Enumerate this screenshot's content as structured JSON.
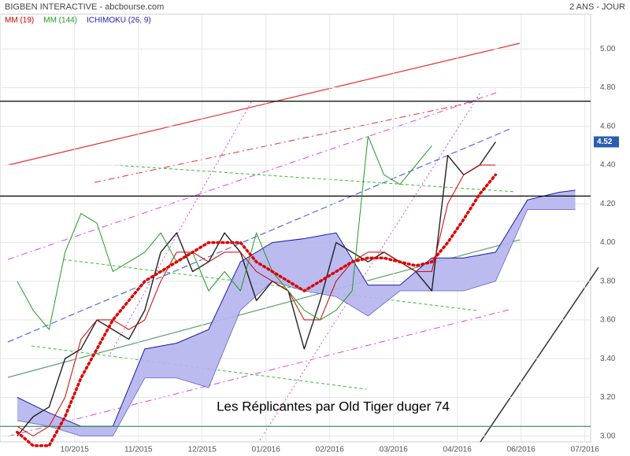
{
  "chart_data": {
    "type": "line",
    "title": "BIGBEN INTERACTIVE - abcbourse.com",
    "subtitle": "2 ANS - JOUR",
    "annotation": "Les Réplicantes par Old Tiger duger 74",
    "last_price": 4.52,
    "ylim": [
      2.97,
      5.18
    ],
    "xlim": [
      -1.17,
      8.09
    ],
    "yticks": [
      {
        "value": 3,
        "label": "3.00"
      },
      {
        "value": 3.2,
        "label": "3.20"
      },
      {
        "value": 3.4,
        "label": "3.40"
      },
      {
        "value": 3.6,
        "label": "3.60"
      },
      {
        "value": 3.8,
        "label": "3.80"
      },
      {
        "value": 4,
        "label": "4.00"
      },
      {
        "value": 4.2,
        "label": "4.20"
      },
      {
        "value": 4.4,
        "label": "4.40"
      },
      {
        "value": 4.6,
        "label": "4.60"
      },
      {
        "value": 4.8,
        "label": "4.80"
      },
      {
        "value": 5,
        "label": "5.00"
      }
    ],
    "xticks": [
      {
        "value": 0,
        "label": "10/2015"
      },
      {
        "value": 1,
        "label": "11/2015"
      },
      {
        "value": 2,
        "label": "12/2015"
      },
      {
        "value": 3,
        "label": "01/2016"
      },
      {
        "value": 4,
        "label": "02/2016"
      },
      {
        "value": 5,
        "label": "03/2016"
      },
      {
        "value": 6,
        "label": "04/2016"
      },
      {
        "value": 7,
        "label": "06/2016"
      },
      {
        "value": 8,
        "label": "07/2016"
      }
    ],
    "grid": true,
    "hlines": [
      {
        "value": 4.73,
        "color": "#000000"
      },
      {
        "value": 4.24,
        "color": "#000000"
      },
      {
        "value": 3.05,
        "color": "#2e8b57"
      }
    ],
    "x": [
      -0.9,
      -0.65,
      -0.4,
      -0.15,
      0.1,
      0.35,
      0.6,
      0.85,
      1.1,
      1.35,
      1.6,
      1.85,
      2.1,
      2.35,
      2.6,
      2.85,
      3.1,
      3.35,
      3.6,
      3.85,
      4.1,
      4.35,
      4.6,
      4.85,
      5.1,
      5.35,
      5.6,
      5.85,
      6.1,
      6.35,
      6.6
    ],
    "series": [
      {
        "color": "#222222",
        "width": 1.4,
        "values": [
          3.0,
          3.1,
          3.15,
          3.4,
          3.45,
          3.6,
          3.55,
          3.5,
          3.65,
          3.95,
          4.05,
          3.85,
          3.9,
          4.05,
          3.95,
          3.7,
          3.8,
          3.75,
          3.45,
          3.7,
          4.0,
          3.95,
          3.9,
          3.95,
          3.9,
          3.85,
          3.75,
          4.45,
          4.35,
          4.4,
          4.52
        ]
      },
      {
        "name": "MM (19)",
        "color": "#cc0000",
        "width": 1,
        "values": [
          3.05,
          3.0,
          3.05,
          3.2,
          3.5,
          3.6,
          3.6,
          3.55,
          3.6,
          3.8,
          3.95,
          3.95,
          3.9,
          3.95,
          3.95,
          3.85,
          3.8,
          3.75,
          3.6,
          3.6,
          3.8,
          3.9,
          3.95,
          3.95,
          3.9,
          3.85,
          3.85,
          4.2,
          4.35,
          4.4,
          4.4
        ]
      },
      {
        "name": "MM (144)",
        "color": "#229922",
        "width": 1,
        "values": [
          3.8,
          3.65,
          3.55,
          3.95,
          4.15,
          4.1,
          3.85,
          3.9,
          3.95,
          4.05,
          3.9,
          3.95,
          3.75,
          3.85,
          3.75,
          4.05,
          3.85,
          3.75,
          3.65,
          3.6,
          3.65,
          3.75,
          4.55,
          4.35,
          4.3,
          4.4,
          4.5,
          null,
          null,
          null,
          null
        ]
      },
      {
        "color": "#dd0000",
        "width": 3.5,
        "dotted": true,
        "values": [
          3.02,
          2.95,
          2.95,
          3.1,
          3.3,
          3.45,
          3.6,
          3.7,
          3.8,
          3.85,
          3.9,
          3.95,
          4.0,
          4.0,
          4.0,
          3.9,
          3.85,
          3.8,
          3.75,
          3.8,
          3.85,
          3.9,
          3.92,
          3.92,
          3.9,
          3.88,
          3.9,
          4.0,
          4.12,
          4.25,
          4.35
        ]
      }
    ],
    "cloud": {
      "name": "ICHIMOKU (26, 9)",
      "color": "#1a1aa6",
      "fill": "#b4b4ee",
      "x": [
        -0.9,
        -0.4,
        0.1,
        0.6,
        1.1,
        1.6,
        2.1,
        2.6,
        3.1,
        3.6,
        4.1,
        4.6,
        5.1,
        5.6,
        6.1,
        6.6,
        7.1,
        7.6,
        7.85
      ],
      "values": [
        3.2,
        3.12,
        3.05,
        3.05,
        3.45,
        3.48,
        3.55,
        3.9,
        4.0,
        4.02,
        4.05,
        3.78,
        3.78,
        3.92,
        3.92,
        3.95,
        4.22,
        4.26,
        4.27
      ],
      "lower": [
        3.08,
        3.05,
        3.0,
        3.0,
        3.3,
        3.3,
        3.25,
        3.65,
        3.8,
        3.75,
        3.72,
        3.62,
        3.75,
        3.75,
        3.75,
        3.8,
        4.17,
        4.17,
        4.17
      ]
    }
  }
}
